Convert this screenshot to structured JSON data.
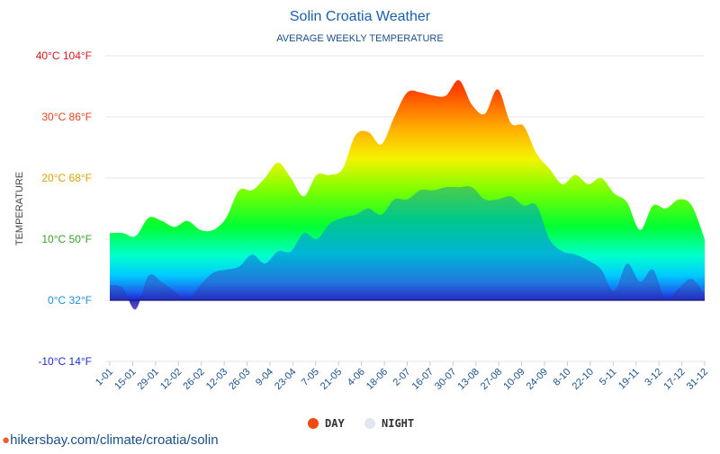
{
  "chart_data": {
    "type": "area",
    "title": "Solin Croatia Weather",
    "subtitle": "AVERAGE WEEKLY TEMPERATURE",
    "ylabel": "TEMPERATURE",
    "ylim": [
      -10,
      40
    ],
    "yticks": [
      {
        "value": 40,
        "label": "40°C 104°F",
        "color": "#d9171a"
      },
      {
        "value": 30,
        "label": "30°C 86°F",
        "color": "#e0441d"
      },
      {
        "value": 20,
        "label": "20°C 68°F",
        "color": "#d9a400"
      },
      {
        "value": 10,
        "label": "10°C 50°F",
        "color": "#3aa12a"
      },
      {
        "value": 0,
        "label": "0°C 32°F",
        "color": "#1f8fd6"
      },
      {
        "value": -10,
        "label": "-10°C 14°F",
        "color": "#1f2fd0"
      }
    ],
    "x_labels": [
      "1-01",
      "15-01",
      "29-01",
      "12-02",
      "26-02",
      "12-03",
      "26-03",
      "9-04",
      "23-04",
      "7-05",
      "21-05",
      "4-06",
      "18-06",
      "2-07",
      "16-07",
      "30-07",
      "13-08",
      "27-08",
      "10-09",
      "24-09",
      "8-10",
      "22-10",
      "5-11",
      "19-11",
      "3-12",
      "17-12",
      "31-12"
    ],
    "series": [
      {
        "name": "DAY",
        "color": "#f04a12",
        "values": [
          11,
          11,
          10.5,
          13.5,
          13,
          12,
          13,
          11.5,
          11.5,
          13.5,
          18,
          18,
          20,
          22.5,
          20,
          17,
          20.5,
          20.5,
          21.5,
          27,
          27.5,
          25.5,
          30,
          34,
          34,
          33.5,
          33.5,
          36,
          32,
          30.5,
          34.5,
          29,
          28.5,
          24,
          21.5,
          19,
          20.5,
          19,
          20,
          17.5,
          16,
          11.5,
          15.5,
          15,
          16.5,
          15.5,
          10
        ]
      },
      {
        "name": "NIGHT",
        "color": "#e2e7ee",
        "values": [
          2.5,
          2,
          -1.5,
          4,
          3,
          1.5,
          0,
          2.5,
          4.5,
          5,
          5.5,
          7.5,
          6,
          8,
          8,
          11,
          10,
          12.5,
          13.5,
          14,
          15,
          14,
          16.5,
          16.5,
          18,
          18,
          18.5,
          18.5,
          18.5,
          16.5,
          16.5,
          17,
          15.5,
          15.5,
          10,
          8,
          7.5,
          6.5,
          5,
          1.5,
          6,
          3,
          5,
          0,
          2,
          3.5,
          1
        ]
      }
    ]
  },
  "legend": {
    "day_label": "DAY",
    "night_label": "NIGHT"
  },
  "footer": {
    "text": "hikersbay.com/climate/croatia/solin"
  }
}
